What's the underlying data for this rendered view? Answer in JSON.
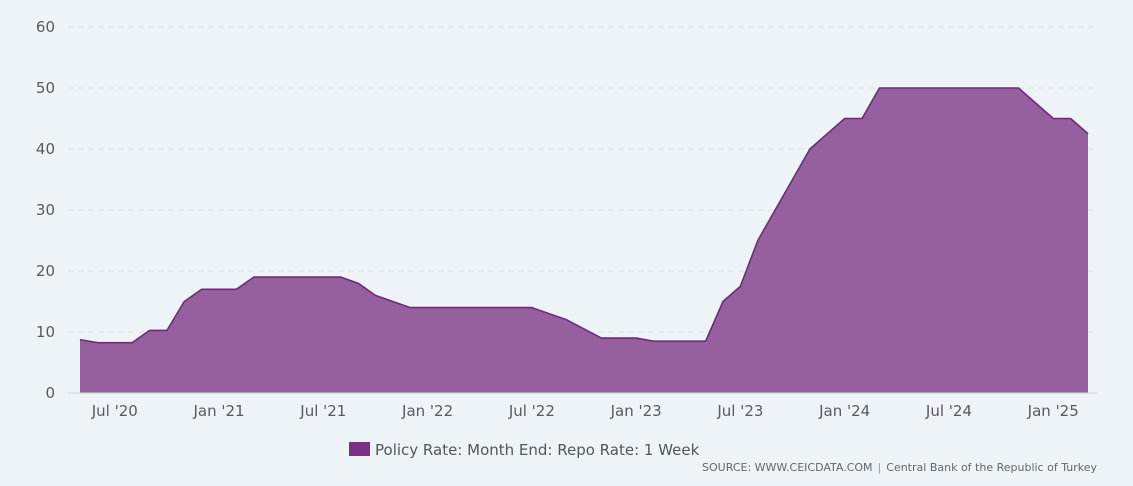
{
  "chart_data": {
    "type": "area",
    "title": "",
    "xlabel": "",
    "ylabel": "",
    "ylim": [
      0,
      60
    ],
    "yticks": [
      0,
      10,
      20,
      30,
      40,
      50,
      60
    ],
    "xtick_labels": [
      "Jul '20",
      "Jan '21",
      "Jul '21",
      "Jan '22",
      "Jul '22",
      "Jan '23",
      "Jul '23",
      "Jan '24",
      "Jul '24",
      "Jan '25"
    ],
    "xtick_months": [
      "2020-07",
      "2021-01",
      "2021-07",
      "2022-01",
      "2022-07",
      "2023-01",
      "2023-07",
      "2024-01",
      "2024-07",
      "2025-01"
    ],
    "grid": true,
    "legend_position": "bottom-center",
    "colors": {
      "fill": "#96609f",
      "line": "#6e2a7c",
      "legend_swatch": "#7b2f86"
    },
    "series": [
      {
        "name": "Policy Rate: Month End: Repo Rate: 1 Week",
        "x": [
          "2020-05",
          "2020-06",
          "2020-07",
          "2020-08",
          "2020-09",
          "2020-10",
          "2020-11",
          "2020-12",
          "2021-01",
          "2021-02",
          "2021-03",
          "2021-04",
          "2021-05",
          "2021-06",
          "2021-07",
          "2021-08",
          "2021-09",
          "2021-10",
          "2021-11",
          "2021-12",
          "2022-01",
          "2022-02",
          "2022-03",
          "2022-04",
          "2022-05",
          "2022-06",
          "2022-07",
          "2022-08",
          "2022-09",
          "2022-10",
          "2022-11",
          "2022-12",
          "2023-01",
          "2023-02",
          "2023-03",
          "2023-04",
          "2023-05",
          "2023-06",
          "2023-07",
          "2023-08",
          "2023-09",
          "2023-10",
          "2023-11",
          "2023-12",
          "2024-01",
          "2024-02",
          "2024-03",
          "2024-04",
          "2024-05",
          "2024-06",
          "2024-07",
          "2024-08",
          "2024-09",
          "2024-10",
          "2024-11",
          "2024-12",
          "2025-01",
          "2025-02",
          "2025-03"
        ],
        "values": [
          8.75,
          8.25,
          8.25,
          8.25,
          10.25,
          10.25,
          15,
          17,
          17,
          17,
          19,
          19,
          19,
          19,
          19,
          19,
          18,
          16,
          15,
          14,
          14,
          14,
          14,
          14,
          14,
          14,
          14,
          13,
          12,
          10.5,
          9,
          9,
          9,
          8.5,
          8.5,
          8.5,
          8.5,
          15,
          17.5,
          25,
          30,
          35,
          40,
          42.5,
          45,
          45,
          50,
          50,
          50,
          50,
          50,
          50,
          50,
          50,
          50,
          47.5,
          45,
          45,
          42.5
        ]
      }
    ]
  },
  "source": {
    "text": "SOURCE: WWW.CEICDATA.COM",
    "separator": "|",
    "provider": "Central Bank of the Republic of Turkey"
  }
}
